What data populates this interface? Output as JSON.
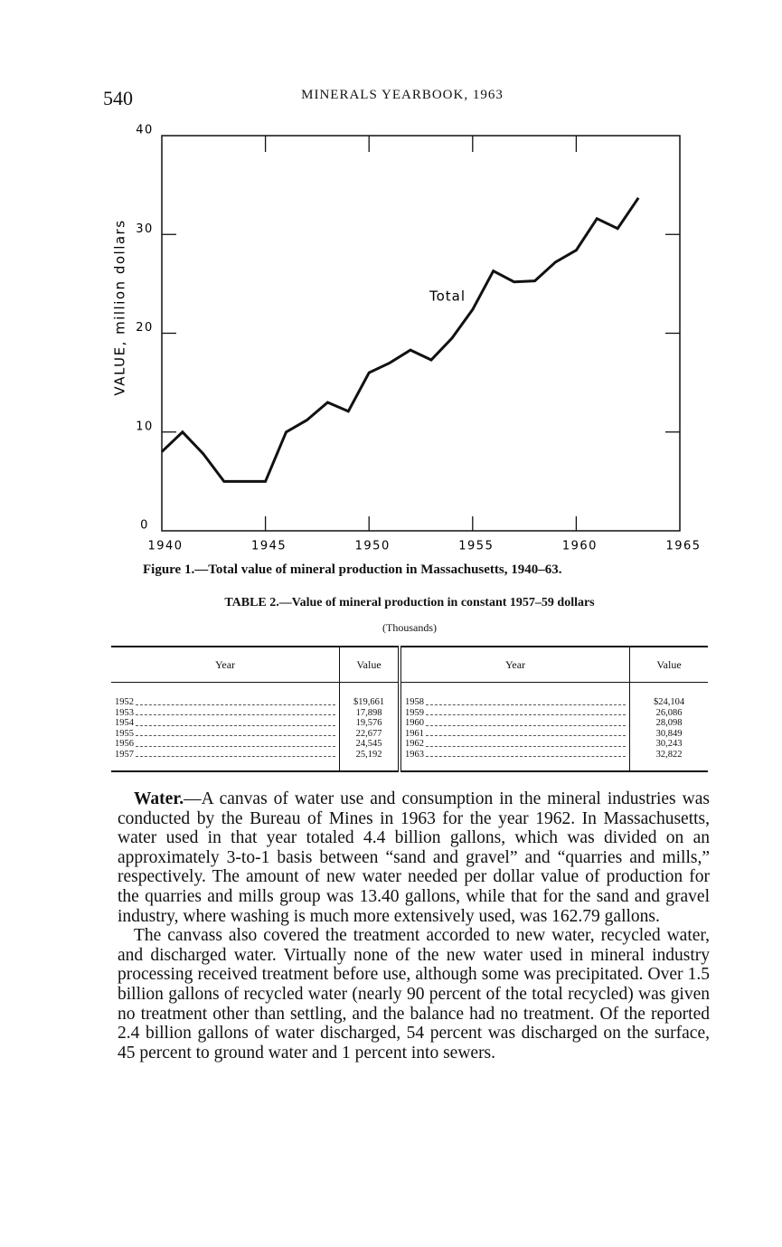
{
  "header": {
    "page_number": "540",
    "running_title": "MINERALS YEARBOOK, 1963"
  },
  "chart_data": {
    "type": "line",
    "y_label": "VALUE, million dollars",
    "annotation": "Total",
    "x": [
      1940,
      1941,
      1942,
      1943,
      1944,
      1945,
      1946,
      1947,
      1948,
      1949,
      1950,
      1951,
      1952,
      1953,
      1954,
      1955,
      1956,
      1957,
      1958,
      1959,
      1960,
      1961,
      1962,
      1963
    ],
    "values": [
      8,
      10,
      7.8,
      5,
      5,
      5,
      10,
      11.2,
      13,
      12.1,
      16,
      17,
      18.3,
      17.3,
      19.5,
      22.4,
      26.3,
      25.2,
      25.3,
      27.2,
      28.4,
      31.6,
      30.6,
      33.7
    ],
    "color": "#111111",
    "xlim": [
      1940,
      1965
    ],
    "xticks": [
      1940,
      1945,
      1950,
      1955,
      1960,
      1965
    ],
    "ylim": [
      0,
      40
    ],
    "yticks": [
      0,
      10,
      20,
      30,
      40
    ]
  },
  "figure_caption": "Figure 1.—Total value of mineral production in Massachusetts, 1940–63.",
  "table": {
    "title": "TABLE 2.—Value of mineral production in constant 1957–59 dollars",
    "subtitle": "(Thousands)",
    "header": [
      "Year",
      "Value",
      "Year",
      "Value"
    ],
    "rows": [
      [
        "1952",
        "$19,661",
        "1958",
        "$24,104"
      ],
      [
        "1953",
        "17,898",
        "1959",
        "26,086"
      ],
      [
        "1954",
        "19,576",
        "1960",
        "28,098"
      ],
      [
        "1955",
        "22,677",
        "1961",
        "30,849"
      ],
      [
        "1956",
        "24,545",
        "1962",
        "30,243"
      ],
      [
        "1957",
        "25,192",
        "1963",
        "32,822"
      ]
    ]
  },
  "paragraphs": [
    {
      "lead": "Water.",
      "text": "—A canvas of water use and consumption in the mineral industries was conducted by the Bureau of Mines in 1963 for the year 1962. In Massachusetts, water used in that year totaled 4.4 billion gallons, which was divided on an approximately 3-to-1 basis between “sand and gravel” and “quarries and mills,” respectively. The amount of new water needed per dollar value of production for the quarries and mills group was 13.40 gallons, while that for the sand and gravel industry, where washing is much more extensively used, was 162.79 gallons."
    },
    {
      "text": "The canvass also covered the treatment accorded to new water, recycled water, and discharged water. Virtually none of the new water used in mineral industry processing received treatment before use, although some was precipitated. Over 1.5 billion gallons of recycled water (nearly 90 percent of the total recycled) was given no treatment other than settling, and the balance had no treatment. Of the reported 2.4 billion gallons of water discharged, 54 percent was discharged on the surface, 45 percent to ground water and 1 percent into sewers."
    }
  ]
}
